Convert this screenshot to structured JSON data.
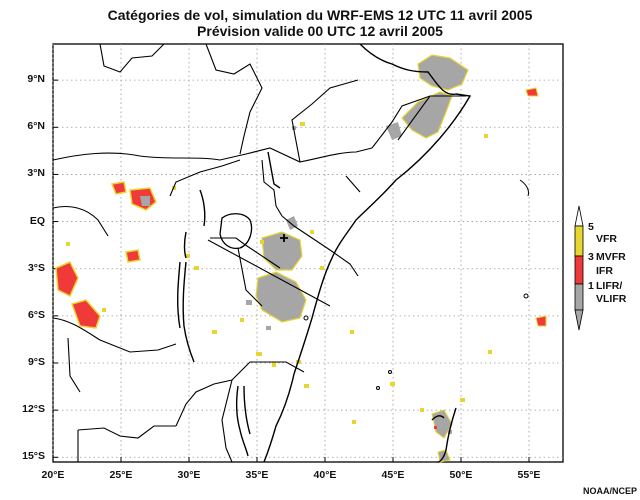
{
  "title": {
    "line1": "Catégories de vol, simulation du WRF-EMS 12 UTC 11 avril 2005",
    "line2": "Prévision valide 00 UTC 12 avril 2005"
  },
  "axes": {
    "lat_labels": [
      "9°N",
      "6°N",
      "3°N",
      "EQ",
      "3°S",
      "6°S",
      "9°S",
      "12°S",
      "15°S"
    ],
    "lat_values": [
      9,
      6,
      3,
      0,
      -3,
      -6,
      -9,
      -12,
      -15
    ],
    "lon_labels": [
      "20°E",
      "25°E",
      "30°E",
      "35°E",
      "40°E",
      "45°E",
      "50°E",
      "55°E"
    ],
    "lon_values": [
      20,
      25,
      30,
      35,
      40,
      45,
      50,
      55
    ],
    "lon_range": [
      20,
      57.5
    ],
    "lat_range": [
      -15.3,
      11.3
    ],
    "grid": "dotted"
  },
  "legend": {
    "ticks": [
      "5",
      "3",
      "1"
    ],
    "categories": [
      {
        "label": "VFR",
        "color": "#e8d630"
      },
      {
        "label": "MVFR",
        "color": "#e8d630"
      },
      {
        "label": "IFR",
        "color": "#f03a3a"
      },
      {
        "label": "LIFR/",
        "color": "#a6a6a6"
      },
      {
        "label": "VLIFR",
        "color": "#a6a6a6"
      }
    ],
    "colors": {
      "vfr": "#e8d630",
      "ifr": "#f03a3a",
      "lifr": "#a6a6a6"
    }
  },
  "credit": "NOAA/NCEP"
}
